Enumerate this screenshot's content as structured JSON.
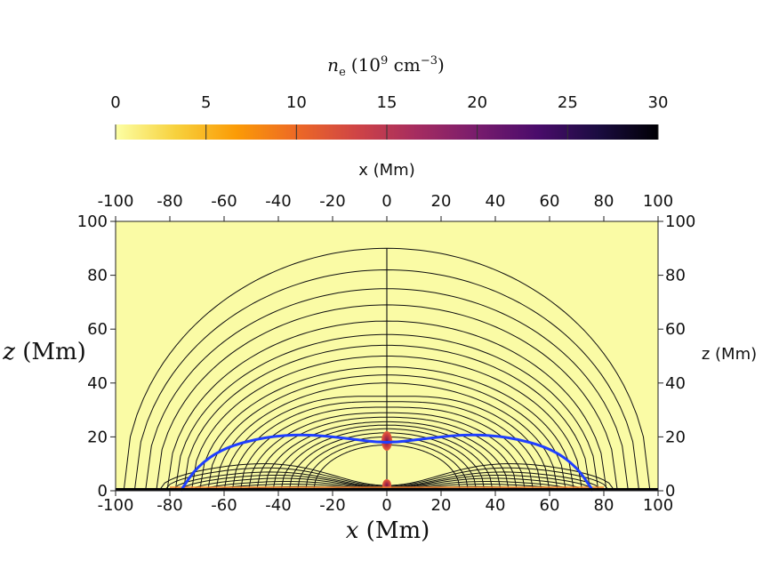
{
  "chart_data": {
    "type": "heatmap",
    "colorbar": {
      "label": "n_e (10^9 cm^-3)",
      "label_parts": {
        "symbol": "n",
        "sub": "e",
        "open": "(10",
        "exp": "9",
        "mid": " cm",
        "exp2": "−3",
        "close": ")"
      },
      "range": [
        0,
        30
      ],
      "ticks": [
        "0",
        "5",
        "10",
        "15",
        "20",
        "25",
        "30"
      ],
      "tick_values": [
        0,
        5,
        10,
        15,
        20,
        25,
        30
      ],
      "colormap": "inferno_r",
      "stops": [
        "#fcffa4",
        "#f7d13d",
        "#fb9b06",
        "#ed6925",
        "#cf4446",
        "#a52c60",
        "#781c6d",
        "#4a0c6b",
        "#1b0c41",
        "#000004"
      ]
    },
    "x_axis": {
      "label_bottom": "x (Mm)",
      "label_top": "x (Mm)",
      "range": [
        -100,
        100
      ],
      "ticks": [
        "-100",
        "-80",
        "-60",
        "-40",
        "-20",
        "0",
        "20",
        "40",
        "60",
        "80",
        "100"
      ],
      "tick_values": [
        -100,
        -80,
        -60,
        -40,
        -20,
        0,
        20,
        40,
        60,
        80,
        100
      ]
    },
    "z_axis": {
      "label_left": "z (Mm)",
      "label_right": "z (Mm)",
      "range": [
        0,
        100
      ],
      "ticks": [
        "0",
        "20",
        "40",
        "60",
        "80",
        "100"
      ],
      "tick_values": [
        0,
        20,
        40,
        60,
        80,
        100
      ]
    },
    "background_density": 0.8,
    "field_lines": {
      "footpoints": [
        97,
        93,
        89,
        85,
        81,
        78,
        75,
        72,
        69,
        66,
        63,
        60,
        57,
        54,
        51,
        48,
        45,
        42,
        39,
        36,
        33,
        30,
        27
      ],
      "apex_heights": [
        90,
        82,
        75,
        69,
        63,
        58,
        54,
        50,
        46,
        43,
        40,
        37.5,
        35,
        32.5,
        30,
        28,
        26,
        24.5,
        23,
        21.5,
        20,
        18.5,
        17
      ],
      "inner_loops": {
        "apex_heights": [
          13,
          11,
          9,
          7.5,
          6,
          4.5,
          3.2,
          2
        ],
        "footpoints": [
          84,
          82,
          79,
          76,
          72,
          68,
          64,
          58
        ]
      },
      "color": "#111111"
    },
    "separatrix": {
      "color": "#1f3fff",
      "points": [
        [
          -76,
          0
        ],
        [
          -70,
          9
        ],
        [
          -60,
          16
        ],
        [
          -45,
          20
        ],
        [
          -30,
          21
        ],
        [
          -15,
          19.5
        ],
        [
          0,
          17.5
        ],
        [
          15,
          19.5
        ],
        [
          30,
          21
        ],
        [
          45,
          20
        ],
        [
          60,
          16
        ],
        [
          70,
          9
        ],
        [
          76,
          0
        ]
      ]
    },
    "condensations": [
      {
        "x": 0,
        "z": 18.5,
        "peak_density": 22
      },
      {
        "x": 0,
        "z": 2,
        "peak_density": 15
      }
    ],
    "base_layer": {
      "z_top": 1,
      "density": 30
    }
  }
}
